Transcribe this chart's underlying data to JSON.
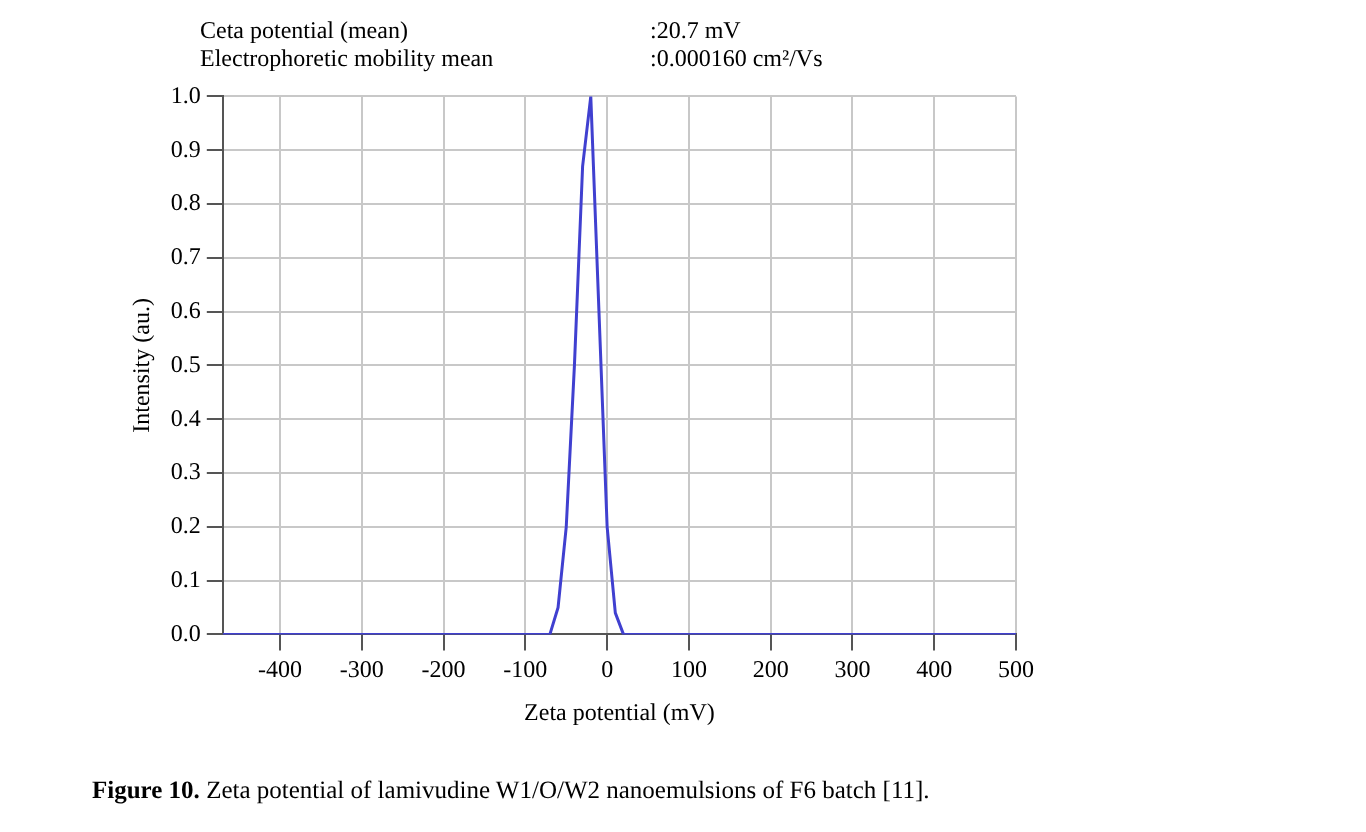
{
  "chart_data": {
    "type": "line",
    "xlabel": "Zeta potential (mV)",
    "ylabel": "Intensity (au.)",
    "annotations": [
      "Ceta potential (mean)",
      ":20.7 mV",
      "Electrophoretic mobility mean",
      ":0.000160 cm²/Vs",
      "Figure 10. Zeta potential of lamivudine W1/O/W2 nanoemulsions of F6 batch [11]."
    ],
    "x": [
      -470,
      -70,
      -60,
      -50,
      -40,
      -30,
      -20,
      -10,
      0,
      10,
      20,
      500
    ],
    "series": [
      {
        "color": "#4040d0",
        "values": [
          0,
          0,
          0.05,
          0.2,
          0.5,
          0.87,
          1.0,
          0.6,
          0.2,
          0.04,
          0,
          0
        ]
      }
    ],
    "xlim": [
      -470,
      500
    ],
    "xticks": [
      -400,
      -300,
      -200,
      -100,
      0,
      100,
      200,
      300,
      400,
      500
    ],
    "ylim": [
      0,
      1
    ],
    "yticks": [
      {
        "value": 0,
        "label": "0.0"
      },
      0.1,
      0.2,
      0.3,
      0.4,
      0.5,
      0.6,
      0.7,
      0.8,
      0.9,
      {
        "value": 1,
        "label": "1.0"
      }
    ],
    "grid": true,
    "legend": false,
    "marker": "none",
    "line_style": "solid"
  }
}
